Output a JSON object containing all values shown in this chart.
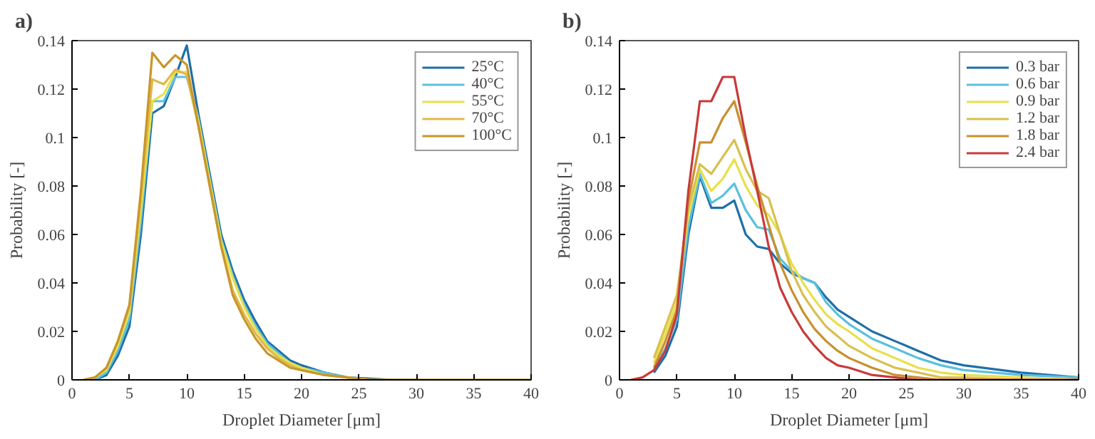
{
  "chart_data": [
    {
      "type": "line",
      "title": "a)",
      "xlabel": "Droplet Diameter [μm]",
      "ylabel": "Probability [-]",
      "x": [
        1,
        2,
        3,
        4,
        5,
        6,
        7,
        8,
        9,
        10,
        11,
        12,
        13,
        14,
        15,
        16,
        17,
        18,
        19,
        20,
        22,
        24,
        26,
        28,
        30,
        35,
        40
      ],
      "xlim": [
        0,
        40
      ],
      "xticks": [
        0,
        5,
        10,
        15,
        20,
        25,
        30,
        35,
        40
      ],
      "ylim": [
        0,
        0.14
      ],
      "yticks": [
        0,
        0.02,
        0.04,
        0.06,
        0.08,
        0.1,
        0.12,
        0.14
      ],
      "grid": false,
      "legend": "top right",
      "line_style": "solid",
      "series": [
        {
          "name": "25°C",
          "color": "#1f6fa8",
          "values": [
            0,
            0,
            0.002,
            0.01,
            0.022,
            0.06,
            0.11,
            0.113,
            0.125,
            0.138,
            0.11,
            0.085,
            0.06,
            0.045,
            0.033,
            0.024,
            0.016,
            0.012,
            0.008,
            0.006,
            0.003,
            0.001,
            0.0005,
            0,
            0,
            null,
            null
          ]
        },
        {
          "name": "40°C",
          "color": "#5bc0de",
          "values": [
            0,
            0,
            0.003,
            0.012,
            0.025,
            0.065,
            0.115,
            0.115,
            0.125,
            0.125,
            0.108,
            0.083,
            0.058,
            0.043,
            0.031,
            0.022,
            0.015,
            0.011,
            0.007,
            0.005,
            0.003,
            0.001,
            0,
            0,
            0,
            null,
            null
          ]
        },
        {
          "name": "55°C",
          "color": "#e8e04a",
          "values": [
            0,
            0.001,
            0.004,
            0.014,
            0.028,
            0.07,
            0.115,
            0.118,
            0.127,
            0.127,
            0.107,
            0.082,
            0.057,
            0.042,
            0.03,
            0.021,
            0.014,
            0.01,
            0.007,
            0.005,
            0.002,
            0.001,
            0,
            null,
            null,
            null,
            null
          ]
        },
        {
          "name": "70°C",
          "color": "#e0b84a",
          "values": [
            0,
            0.001,
            0.005,
            0.016,
            0.03,
            0.075,
            0.124,
            0.122,
            0.128,
            0.126,
            0.105,
            0.08,
            0.055,
            0.037,
            0.027,
            0.019,
            0.013,
            0.009,
            0.006,
            0.004,
            0.002,
            0.001,
            0,
            0,
            0,
            0,
            0
          ]
        },
        {
          "name": "100°C",
          "color": "#c8962a",
          "values": [
            0,
            0.001,
            0.005,
            0.016,
            0.031,
            0.078,
            0.135,
            0.129,
            0.134,
            0.13,
            0.105,
            0.08,
            0.055,
            0.035,
            0.025,
            0.017,
            0.011,
            0.008,
            0.005,
            0.004,
            0.002,
            0.001,
            0,
            0,
            0,
            0,
            0
          ]
        }
      ]
    },
    {
      "type": "line",
      "title": "b)",
      "xlabel": "Droplet Diameter [μm]",
      "ylabel": "Probability [-]",
      "x": [
        1,
        2,
        3,
        4,
        5,
        6,
        7,
        8,
        9,
        10,
        11,
        12,
        13,
        14,
        15,
        16,
        17,
        18,
        19,
        20,
        22,
        24,
        26,
        28,
        30,
        35,
        40
      ],
      "xlim": [
        0,
        40
      ],
      "xticks": [
        0,
        5,
        10,
        15,
        20,
        25,
        30,
        35,
        40
      ],
      "ylim": [
        0,
        0.14
      ],
      "yticks": [
        0,
        0.02,
        0.04,
        0.06,
        0.08,
        0.1,
        0.12,
        0.14
      ],
      "grid": false,
      "legend": "top right",
      "line_style": "solid",
      "series": [
        {
          "name": "0.3 bar",
          "color": "#1f6fa8",
          "values": [
            null,
            null,
            0.003,
            0.01,
            0.022,
            0.06,
            0.084,
            0.071,
            0.071,
            0.074,
            0.06,
            0.055,
            0.054,
            0.048,
            0.044,
            0.042,
            0.04,
            0.034,
            0.029,
            0.026,
            0.02,
            0.016,
            0.012,
            0.008,
            0.006,
            0.003,
            0.001
          ]
        },
        {
          "name": "0.6 bar",
          "color": "#5bc0de",
          "values": [
            null,
            null,
            0.004,
            0.013,
            0.025,
            0.063,
            0.085,
            0.073,
            0.076,
            0.081,
            0.07,
            0.063,
            0.062,
            0.05,
            0.045,
            0.042,
            0.04,
            0.032,
            0.027,
            0.023,
            0.017,
            0.013,
            0.009,
            0.006,
            0.004,
            0.002,
            0.001
          ]
        },
        {
          "name": "0.9 bar",
          "color": "#e8e04a",
          "values": [
            null,
            null,
            0.007,
            0.019,
            0.032,
            0.068,
            0.087,
            0.078,
            0.083,
            0.091,
            0.08,
            0.072,
            0.068,
            0.06,
            0.048,
            0.04,
            0.033,
            0.027,
            0.023,
            0.02,
            0.013,
            0.009,
            0.005,
            0.003,
            0.002,
            0.001,
            0
          ]
        },
        {
          "name": "1.2 bar",
          "color": "#d8c050",
          "values": [
            null,
            null,
            0.009,
            0.022,
            0.035,
            0.071,
            0.089,
            0.085,
            0.092,
            0.099,
            0.087,
            0.078,
            0.075,
            0.06,
            0.045,
            0.035,
            0.028,
            0.022,
            0.018,
            0.014,
            0.009,
            0.005,
            0.003,
            0.001,
            0.001,
            0,
            0
          ]
        },
        {
          "name": "1.8 bar",
          "color": "#c8902e",
          "values": [
            null,
            null,
            0.005,
            0.016,
            0.029,
            0.074,
            0.098,
            0.098,
            0.108,
            0.115,
            0.098,
            0.08,
            0.064,
            0.048,
            0.037,
            0.028,
            0.021,
            0.016,
            0.012,
            0.009,
            0.005,
            0.002,
            0.001,
            0,
            0,
            0,
            0
          ]
        },
        {
          "name": "2.4 bar",
          "color": "#c83a3a",
          "values": [
            0,
            0.001,
            0.004,
            0.012,
            0.027,
            0.078,
            0.115,
            0.115,
            0.125,
            0.125,
            0.1,
            0.078,
            0.055,
            0.038,
            0.028,
            0.02,
            0.014,
            0.009,
            0.006,
            0.005,
            0.002,
            0.001,
            0,
            0,
            0,
            0,
            0
          ]
        }
      ]
    }
  ]
}
